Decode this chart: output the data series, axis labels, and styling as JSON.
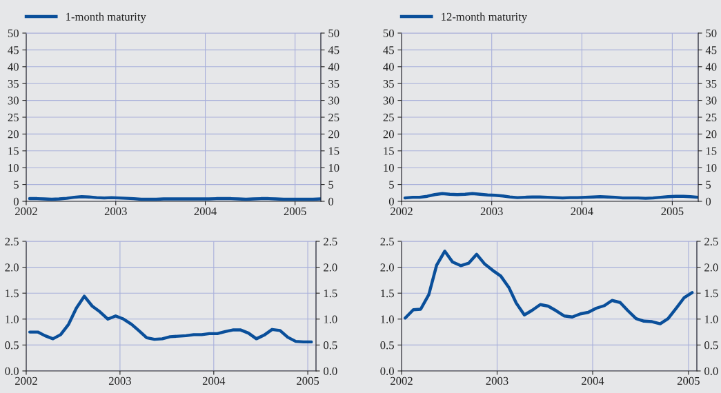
{
  "chart_data": [
    {
      "type": "line",
      "legend": "top left",
      "grid": true,
      "x": [
        "2002-01-15",
        "2002-02-15",
        "2002-03-15",
        "2002-04-15",
        "2002-05-15",
        "2002-06-15",
        "2002-07-15",
        "2002-08-15",
        "2002-09-15",
        "2002-10-15",
        "2002-11-15",
        "2002-12-15",
        "2003-01-15",
        "2003-02-15",
        "2003-03-15",
        "2003-04-15",
        "2003-05-15",
        "2003-06-15",
        "2003-07-15",
        "2003-08-15",
        "2003-09-15",
        "2003-10-15",
        "2003-11-15",
        "2003-12-15",
        "2004-01-15",
        "2004-02-15",
        "2004-03-15",
        "2004-04-15",
        "2004-05-15",
        "2004-06-15",
        "2004-07-15",
        "2004-08-15",
        "2004-09-15",
        "2004-10-15",
        "2004-11-15",
        "2004-12-15",
        "2005-01-15",
        "2005-02-15",
        "2005-03-15",
        "2005-04-15"
      ],
      "series": [
        {
          "name": "1-month maturity",
          "color": "#0a4f9a",
          "values": [
            0.8,
            0.8,
            0.7,
            0.6,
            0.7,
            0.9,
            1.2,
            1.4,
            1.3,
            1.1,
            1.0,
            1.1,
            1.0,
            0.9,
            0.8,
            0.6,
            0.6,
            0.6,
            0.7,
            0.7,
            0.7,
            0.7,
            0.7,
            0.7,
            0.7,
            0.8,
            0.8,
            0.8,
            0.7,
            0.6,
            0.7,
            0.8,
            0.8,
            0.7,
            0.6,
            0.6,
            0.6,
            0.6,
            0.6,
            0.7
          ]
        }
      ],
      "xlim": [
        "2002-01-01",
        "2005-04-16"
      ],
      "xticks": [
        {
          "value": "2002-01-01",
          "label": "2002"
        },
        {
          "value": "2003-01-01",
          "label": "2003"
        },
        {
          "value": "2004-01-01",
          "label": "2004"
        },
        {
          "value": "2005-01-01",
          "label": "2005"
        }
      ],
      "ylim": [
        0,
        50
      ],
      "yticks": [
        0,
        5,
        10,
        15,
        20,
        25,
        30,
        35,
        40,
        45,
        50
      ],
      "y2lim": [
        0,
        50
      ],
      "y2ticks": [
        0,
        5,
        10,
        15,
        20,
        25,
        30,
        35,
        40,
        45,
        50
      ]
    },
    {
      "type": "line",
      "legend": "top left",
      "grid": true,
      "x": [
        "2002-01-15",
        "2002-02-15",
        "2002-03-15",
        "2002-04-15",
        "2002-05-15",
        "2002-06-15",
        "2002-07-15",
        "2002-08-15",
        "2002-09-15",
        "2002-10-15",
        "2002-11-15",
        "2002-12-15",
        "2003-01-15",
        "2003-02-15",
        "2003-03-15",
        "2003-04-15",
        "2003-05-15",
        "2003-06-15",
        "2003-07-15",
        "2003-08-15",
        "2003-09-15",
        "2003-10-15",
        "2003-11-15",
        "2003-12-15",
        "2004-01-15",
        "2004-02-15",
        "2004-03-15",
        "2004-04-15",
        "2004-05-15",
        "2004-06-15",
        "2004-07-15",
        "2004-08-15",
        "2004-09-15",
        "2004-10-15",
        "2004-11-15",
        "2004-12-15",
        "2005-01-15",
        "2005-02-15",
        "2005-03-15",
        "2005-04-15"
      ],
      "series": [
        {
          "name": "12-month maturity",
          "color": "#0a4f9a",
          "values": [
            1.0,
            1.2,
            1.2,
            1.5,
            2.0,
            2.3,
            2.1,
            2.0,
            2.1,
            2.3,
            2.1,
            1.9,
            1.8,
            1.6,
            1.3,
            1.1,
            1.2,
            1.3,
            1.3,
            1.2,
            1.1,
            1.0,
            1.1,
            1.1,
            1.2,
            1.3,
            1.4,
            1.3,
            1.2,
            1.0,
            1.0,
            1.0,
            0.9,
            1.0,
            1.2,
            1.4,
            1.5,
            1.5,
            1.4,
            1.2
          ]
        }
      ],
      "xlim": [
        "2002-01-01",
        "2005-04-16"
      ],
      "xticks": [
        {
          "value": "2002-01-01",
          "label": "2002"
        },
        {
          "value": "2003-01-01",
          "label": "2003"
        },
        {
          "value": "2004-01-01",
          "label": "2004"
        },
        {
          "value": "2005-01-01",
          "label": "2005"
        }
      ],
      "ylim": [
        0,
        50
      ],
      "yticks": [
        0,
        5,
        10,
        15,
        20,
        25,
        30,
        35,
        40,
        45,
        50
      ],
      "y2lim": [
        0,
        50
      ],
      "y2ticks": [
        0,
        5,
        10,
        15,
        20,
        25,
        30,
        35,
        40,
        45,
        50
      ]
    },
    {
      "type": "line",
      "grid": true,
      "x": [
        "2002-01-15",
        "2002-02-15",
        "2002-03-15",
        "2002-04-15",
        "2002-05-15",
        "2002-06-15",
        "2002-07-15",
        "2002-08-15",
        "2002-09-15",
        "2002-10-15",
        "2002-11-15",
        "2002-12-15",
        "2003-01-15",
        "2003-02-15",
        "2003-03-15",
        "2003-04-15",
        "2003-05-15",
        "2003-06-15",
        "2003-07-15",
        "2003-08-15",
        "2003-09-15",
        "2003-10-15",
        "2003-11-15",
        "2003-12-15",
        "2004-01-15",
        "2004-02-15",
        "2004-03-15",
        "2004-04-15",
        "2004-05-15",
        "2004-06-15",
        "2004-07-15",
        "2004-08-15",
        "2004-09-15",
        "2004-10-15",
        "2004-11-15",
        "2004-12-15",
        "2005-01-15"
      ],
      "series": [
        {
          "color": "#0a4f9a",
          "values": [
            0.75,
            0.75,
            0.68,
            0.62,
            0.7,
            0.9,
            1.21,
            1.44,
            1.25,
            1.14,
            1.0,
            1.06,
            1.0,
            0.9,
            0.78,
            0.64,
            0.61,
            0.62,
            0.66,
            0.67,
            0.68,
            0.7,
            0.7,
            0.72,
            0.72,
            0.76,
            0.79,
            0.79,
            0.73,
            0.62,
            0.69,
            0.8,
            0.78,
            0.65,
            0.57,
            0.56,
            0.56
          ]
        }
      ],
      "xlim": [
        "2002-01-01",
        "2005-02-02"
      ],
      "xticks": [
        {
          "value": "2002-01-01",
          "label": "2002"
        },
        {
          "value": "2003-01-01",
          "label": "2003"
        },
        {
          "value": "2004-01-01",
          "label": "2004"
        },
        {
          "value": "2005-01-01",
          "label": "2005"
        }
      ],
      "ylim": [
        0,
        2.5
      ],
      "yticks": [
        {
          "value": 0,
          "label": "0.0"
        },
        {
          "value": 0.5,
          "label": "0.5"
        },
        {
          "value": 1,
          "label": "1.0"
        },
        {
          "value": 1.5,
          "label": "1.5"
        },
        {
          "value": 2,
          "label": "2.0"
        },
        {
          "value": 2.5,
          "label": "2.5"
        }
      ],
      "y2lim": [
        0,
        2.5
      ],
      "y2ticks": [
        {
          "value": 0,
          "label": "0.0"
        },
        {
          "value": 0.5,
          "label": "0.5"
        },
        {
          "value": 1,
          "label": "1.0"
        },
        {
          "value": 1.5,
          "label": "1.5"
        },
        {
          "value": 2,
          "label": "2.0"
        },
        {
          "value": 2.5,
          "label": "2.5"
        }
      ]
    },
    {
      "type": "line",
      "grid": true,
      "x": [
        "2002-01-15",
        "2002-02-15",
        "2002-03-15",
        "2002-04-15",
        "2002-05-15",
        "2002-06-15",
        "2002-07-15",
        "2002-08-15",
        "2002-09-15",
        "2002-10-15",
        "2002-11-15",
        "2002-12-15",
        "2003-01-15",
        "2003-02-15",
        "2003-03-15",
        "2003-04-15",
        "2003-05-15",
        "2003-06-15",
        "2003-07-15",
        "2003-08-15",
        "2003-09-15",
        "2003-10-15",
        "2003-11-15",
        "2003-12-15",
        "2004-01-15",
        "2004-02-15",
        "2004-03-15",
        "2004-04-15",
        "2004-05-15",
        "2004-06-15",
        "2004-07-15",
        "2004-08-15",
        "2004-09-15",
        "2004-10-15",
        "2004-11-15",
        "2004-12-15",
        "2005-01-15"
      ],
      "series": [
        {
          "color": "#0a4f9a",
          "values": [
            1.02,
            1.18,
            1.19,
            1.47,
            2.04,
            2.31,
            2.1,
            2.03,
            2.08,
            2.25,
            2.06,
            1.94,
            1.83,
            1.61,
            1.31,
            1.08,
            1.17,
            1.28,
            1.25,
            1.16,
            1.06,
            1.04,
            1.1,
            1.13,
            1.21,
            1.26,
            1.36,
            1.32,
            1.16,
            1.01,
            0.96,
            0.95,
            0.91,
            1.01,
            1.21,
            1.41,
            1.51
          ]
        }
      ],
      "xlim": [
        "2002-01-01",
        "2005-02-02"
      ],
      "xticks": [
        {
          "value": "2002-01-01",
          "label": "2002"
        },
        {
          "value": "2003-01-01",
          "label": "2003"
        },
        {
          "value": "2004-01-01",
          "label": "2004"
        },
        {
          "value": "2005-01-01",
          "label": "2005"
        }
      ],
      "ylim": [
        0,
        2.5
      ],
      "yticks": [
        {
          "value": 0,
          "label": "0.0"
        },
        {
          "value": 0.5,
          "label": "0.5"
        },
        {
          "value": 1,
          "label": "1.0"
        },
        {
          "value": 1.5,
          "label": "1.5"
        },
        {
          "value": 2,
          "label": "2.0"
        },
        {
          "value": 2.5,
          "label": "2.5"
        }
      ],
      "y2lim": [
        0,
        2.5
      ],
      "y2ticks": [
        {
          "value": 0,
          "label": "0.0"
        },
        {
          "value": 0.5,
          "label": "0.5"
        },
        {
          "value": 1,
          "label": "1.0"
        },
        {
          "value": 1.5,
          "label": "1.5"
        },
        {
          "value": 2,
          "label": "2.0"
        },
        {
          "value": 2.5,
          "label": "2.5"
        }
      ]
    }
  ]
}
